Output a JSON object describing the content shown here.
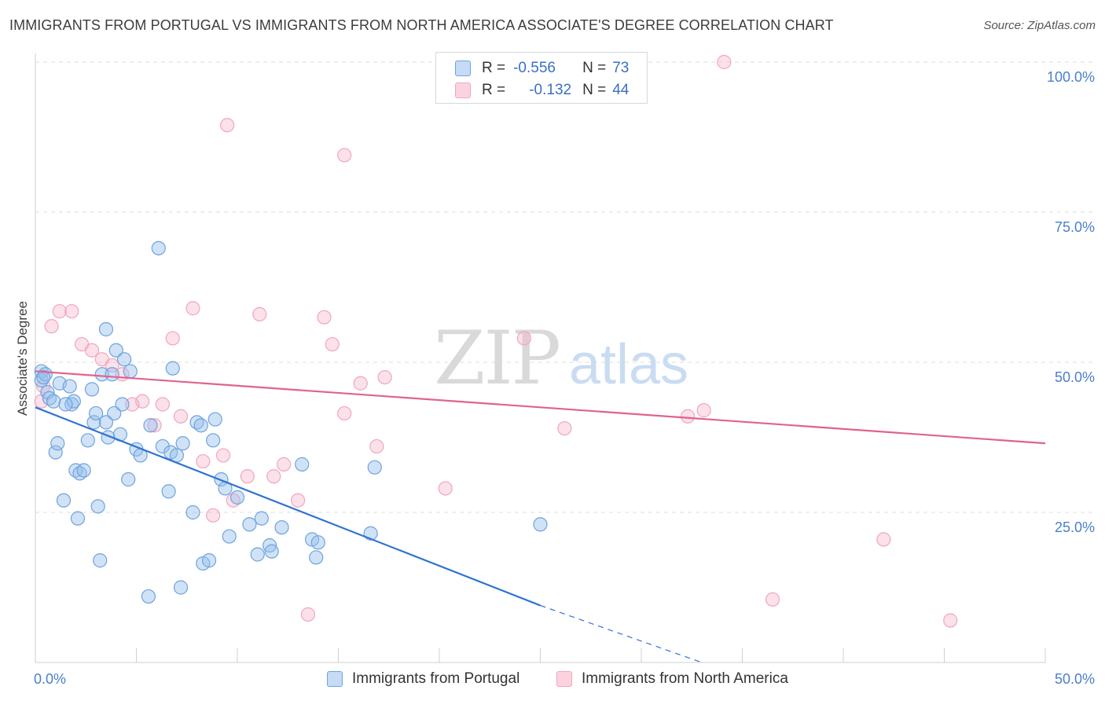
{
  "title": "IMMIGRANTS FROM PORTUGAL VS IMMIGRANTS FROM NORTH AMERICA ASSOCIATE'S DEGREE CORRELATION CHART",
  "source": "Source: ZipAtlas.com",
  "watermark": {
    "zip": "ZIP",
    "atlas": "atlas"
  },
  "colors": {
    "blue": "#6ea3e0",
    "blue_line": "#2f74d0",
    "pink": "#f2a6bd",
    "pink_line": "#e0628e",
    "tick": "#4a7fcc",
    "grid": "#dddddd"
  },
  "legend": {
    "row1": {
      "r_label": "R =",
      "r_value": "-0.556",
      "n_label": "N =",
      "n_value": "73"
    },
    "row2": {
      "r_label": "R =",
      "r_value": "-0.132",
      "n_label": "N =",
      "n_value": "44"
    }
  },
  "bottom_legend": {
    "portugal": "Immigrants from Portugal",
    "north_america": "Immigrants from North America"
  },
  "chart_data": {
    "type": "scatter",
    "xlabel": "",
    "ylabel": "Associate's Degree",
    "xlim": [
      0,
      50
    ],
    "ylim": [
      0,
      100
    ],
    "x_tick_labels": {
      "min": "0.0%",
      "max": "50.0%"
    },
    "y_tick_labels": [
      "25.0%",
      "50.0%",
      "75.0%",
      "100.0%"
    ],
    "y_ticks": [
      25,
      50,
      75,
      100
    ],
    "series": [
      {
        "name": "Immigrants from Portugal",
        "color": "blue",
        "R": -0.556,
        "N": 73,
        "trend": {
          "x0": 0,
          "y0": 42.5,
          "x1": 25,
          "y1": 9.5,
          "dash_to_x": 33,
          "dash_to_y": 0
        },
        "points": [
          [
            0.3,
            48.5
          ],
          [
            0.3,
            47
          ],
          [
            0.5,
            48
          ],
          [
            0.6,
            45
          ],
          [
            0.7,
            44
          ],
          [
            0.9,
            43.5
          ],
          [
            1.0,
            35
          ],
          [
            1.1,
            36.5
          ],
          [
            1.2,
            46.5
          ],
          [
            1.4,
            27
          ],
          [
            1.7,
            46
          ],
          [
            1.8,
            43
          ],
          [
            1.9,
            43.5
          ],
          [
            2.0,
            32
          ],
          [
            2.1,
            24
          ],
          [
            2.2,
            31.5
          ],
          [
            2.4,
            32
          ],
          [
            2.6,
            37
          ],
          [
            2.8,
            45.5
          ],
          [
            2.9,
            40
          ],
          [
            3.0,
            41.5
          ],
          [
            3.1,
            26
          ],
          [
            3.2,
            17
          ],
          [
            3.3,
            48
          ],
          [
            3.5,
            55.5
          ],
          [
            3.6,
            37.5
          ],
          [
            3.8,
            48
          ],
          [
            3.9,
            41.5
          ],
          [
            4.0,
            52
          ],
          [
            4.2,
            38
          ],
          [
            4.3,
            43
          ],
          [
            4.4,
            50.5
          ],
          [
            4.6,
            30.5
          ],
          [
            4.7,
            48.5
          ],
          [
            5.0,
            35.5
          ],
          [
            5.2,
            34.5
          ],
          [
            5.6,
            11
          ],
          [
            5.7,
            39.5
          ],
          [
            6.1,
            69
          ],
          [
            6.3,
            36
          ],
          [
            6.6,
            28.5
          ],
          [
            6.7,
            35
          ],
          [
            6.8,
            49
          ],
          [
            7.0,
            34.5
          ],
          [
            7.2,
            12.5
          ],
          [
            7.3,
            36.5
          ],
          [
            7.8,
            25
          ],
          [
            8.0,
            40
          ],
          [
            8.2,
            39.5
          ],
          [
            8.3,
            16.5
          ],
          [
            8.6,
            17
          ],
          [
            8.8,
            37
          ],
          [
            8.9,
            40.5
          ],
          [
            9.2,
            30.5
          ],
          [
            9.4,
            29
          ],
          [
            9.6,
            21
          ],
          [
            10.0,
            27.5
          ],
          [
            10.6,
            23
          ],
          [
            11.0,
            18
          ],
          [
            11.2,
            24
          ],
          [
            11.6,
            19.5
          ],
          [
            11.7,
            18.5
          ],
          [
            12.2,
            22.5
          ],
          [
            13.2,
            33
          ],
          [
            13.7,
            20.5
          ],
          [
            13.9,
            17.5
          ],
          [
            14.0,
            20
          ],
          [
            16.6,
            21.5
          ],
          [
            16.8,
            32.5
          ],
          [
            25.0,
            23
          ],
          [
            3.5,
            40
          ],
          [
            1.5,
            43
          ],
          [
            0.4,
            47.5
          ]
        ]
      },
      {
        "name": "Immigrants from North America",
        "color": "pink",
        "R": -0.132,
        "N": 44,
        "trend": {
          "x0": 0,
          "y0": 48.5,
          "x1": 50,
          "y1": 36.5
        },
        "points": [
          [
            0.3,
            43.5
          ],
          [
            0.4,
            46
          ],
          [
            0.8,
            56
          ],
          [
            1.2,
            58.5
          ],
          [
            1.8,
            58.5
          ],
          [
            2.3,
            53
          ],
          [
            2.8,
            52
          ],
          [
            3.3,
            50.5
          ],
          [
            3.8,
            49.5
          ],
          [
            4.3,
            48
          ],
          [
            4.8,
            43
          ],
          [
            5.3,
            43.5
          ],
          [
            5.9,
            39.5
          ],
          [
            6.3,
            43
          ],
          [
            6.8,
            54
          ],
          [
            7.2,
            41
          ],
          [
            7.8,
            59
          ],
          [
            8.3,
            33.5
          ],
          [
            8.8,
            24.5
          ],
          [
            9.3,
            34.5
          ],
          [
            9.8,
            27
          ],
          [
            10.5,
            31
          ],
          [
            11.1,
            58
          ],
          [
            11.8,
            31
          ],
          [
            12.3,
            33
          ],
          [
            13.0,
            27
          ],
          [
            13.5,
            8
          ],
          [
            14.3,
            57.5
          ],
          [
            14.7,
            53
          ],
          [
            15.3,
            41.5
          ],
          [
            16.1,
            46.5
          ],
          [
            16.9,
            36
          ],
          [
            17.3,
            47.5
          ],
          [
            20.3,
            29
          ],
          [
            24.2,
            54
          ],
          [
            26.2,
            39
          ],
          [
            32.3,
            41
          ],
          [
            33.1,
            42
          ],
          [
            34.1,
            100
          ],
          [
            36.5,
            10.5
          ],
          [
            42.0,
            20.5
          ],
          [
            45.3,
            7
          ],
          [
            9.5,
            89.5
          ],
          [
            15.3,
            84.5
          ]
        ]
      }
    ]
  }
}
